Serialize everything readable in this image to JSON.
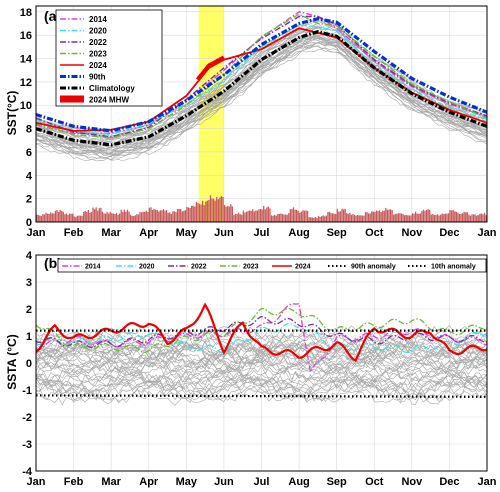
{
  "chart_data": [
    {
      "type": "line",
      "panel_label": "(a)",
      "ylabel": "SST(°C)",
      "xlabel": "",
      "x_ticks": [
        "Jan",
        "Feb",
        "Mar",
        "Apr",
        "May",
        "Jun",
        "Jul",
        "Aug",
        "Sep",
        "Oct",
        "Nov",
        "Dec",
        "Jan"
      ],
      "y_ticks": [
        0,
        2,
        4,
        6,
        8,
        10,
        12,
        14,
        16,
        18
      ],
      "ylim": [
        0,
        18.5
      ],
      "xlim": [
        0,
        12
      ],
      "grid": true,
      "legend_position": "top-left",
      "highlight": {
        "x_start": 4.33,
        "x_end": 5.0,
        "color": "#ffff66"
      },
      "series": [
        {
          "name": "2014",
          "color": "#e040e0",
          "style": "dashdot",
          "x": [
            0,
            1,
            2,
            3,
            4,
            5,
            6,
            7,
            7.5,
            8,
            9,
            10,
            11,
            12
          ],
          "y": [
            8.3,
            7.6,
            7.6,
            8.3,
            10.3,
            13.0,
            15.8,
            18.0,
            17.6,
            16.6,
            13.8,
            11.6,
            10.1,
            9.0
          ]
        },
        {
          "name": "2020",
          "color": "#40e0e0",
          "style": "dashdot",
          "x": [
            0,
            1,
            2,
            3,
            4,
            5,
            6,
            7,
            8,
            9,
            10,
            11,
            12
          ],
          "y": [
            8.8,
            7.8,
            7.5,
            8.4,
            10.1,
            12.1,
            15.0,
            16.9,
            16.4,
            13.4,
            11.3,
            9.8,
            8.8
          ]
        },
        {
          "name": "2022",
          "color": "#7b2fa0",
          "style": "dashdot",
          "x": [
            0,
            1,
            2,
            3,
            4,
            5,
            6,
            7,
            7.5,
            8,
            9,
            10,
            11,
            12
          ],
          "y": [
            8.9,
            7.7,
            7.3,
            8.1,
            10.5,
            13.2,
            15.7,
            17.6,
            17.6,
            16.9,
            13.9,
            11.7,
            10.2,
            9.1
          ]
        },
        {
          "name": "2023",
          "color": "#66bb33",
          "style": "dashdot",
          "x": [
            0,
            1,
            2,
            3,
            4,
            5,
            6,
            7,
            7.5,
            8,
            9,
            10,
            11,
            12
          ],
          "y": [
            8.4,
            7.5,
            7.2,
            8.0,
            10.0,
            12.6,
            15.9,
            17.8,
            17.0,
            16.8,
            14.2,
            11.8,
            10.3,
            8.9
          ]
        },
        {
          "name": "2024",
          "color": "#ee0000",
          "style": "solid",
          "x": [
            0,
            1,
            2,
            3,
            4,
            4.6,
            5,
            6,
            7,
            8,
            9,
            10,
            11,
            12
          ],
          "y": [
            8.5,
            7.8,
            7.9,
            8.6,
            10.8,
            13.2,
            13.9,
            14.8,
            16.6,
            15.8,
            13.2,
            11.1,
            9.6,
            8.5
          ]
        },
        {
          "name": "90th",
          "color": "#0033cc",
          "style": "dashdot",
          "x": [
            0,
            1,
            2,
            3,
            4,
            5,
            6,
            7,
            7.5,
            8,
            9,
            10,
            11,
            12
          ],
          "y": [
            9.2,
            8.2,
            7.8,
            8.6,
            10.4,
            12.6,
            15.2,
            17.0,
            17.4,
            17.1,
            14.6,
            12.3,
            10.7,
            9.4
          ]
        },
        {
          "name": "Climatology",
          "color": "#000000",
          "style": "dashdot",
          "x": [
            0,
            1,
            2,
            3,
            4,
            5,
            6,
            7,
            7.5,
            8,
            9,
            10,
            11,
            12
          ],
          "y": [
            8.0,
            7.0,
            6.6,
            7.3,
            9.1,
            11.2,
            13.9,
            15.8,
            16.3,
            15.9,
            13.2,
            11.0,
            9.4,
            8.2
          ]
        }
      ],
      "mhw_bars": {
        "name": "2024 MHW",
        "color": "#c85a5a",
        "x": [
          0,
          0.25,
          0.5,
          0.75,
          1,
          1.25,
          1.5,
          1.75,
          2,
          2.25,
          2.5,
          2.75,
          3,
          3.25,
          3.5,
          3.75,
          4,
          4.25,
          4.5,
          4.75,
          5,
          5.25,
          5.5,
          5.75,
          6,
          6.25,
          6.5,
          6.75,
          7,
          7.25,
          7.5,
          7.75,
          8,
          8.25,
          8.5,
          8.75,
          9,
          9.25,
          9.5,
          9.75,
          10,
          10.25,
          10.5,
          10.75,
          11,
          11.25,
          11.5,
          11.75
        ],
        "y": [
          0.6,
          0.8,
          0.9,
          0.7,
          0.5,
          0.9,
          1.1,
          0.8,
          0.7,
          1.0,
          0.6,
          0.9,
          1.2,
          1.0,
          0.8,
          1.0,
          1.3,
          1.6,
          2.0,
          2.1,
          1.5,
          0.7,
          0.9,
          1.0,
          1.2,
          0.6,
          0.7,
          1.1,
          0.9,
          0.4,
          0.5,
          0.8,
          1.0,
          0.7,
          0.6,
          0.8,
          0.9,
          1.1,
          0.7,
          0.6,
          0.8,
          1.0,
          0.6,
          0.7,
          0.9,
          0.8,
          0.6,
          0.7
        ]
      },
      "legend": [
        "2014",
        "2020",
        "2022",
        "2023",
        "2024",
        "90th",
        "Climatology",
        "2024 MHW"
      ]
    },
    {
      "type": "line",
      "panel_label": "(b)",
      "ylabel": "SSTA (°C)",
      "xlabel": "",
      "x_ticks": [
        "Jan",
        "Feb",
        "Mar",
        "Apr",
        "May",
        "Jun",
        "Jul",
        "Aug",
        "Sep",
        "Oct",
        "Nov",
        "Dec",
        "Jan"
      ],
      "y_ticks": [
        -4,
        -3,
        -2,
        -1,
        0,
        1,
        2,
        3,
        4
      ],
      "ylim": [
        -4,
        4
      ],
      "xlim": [
        0,
        12
      ],
      "grid": true,
      "legend_position": "top",
      "series": [
        {
          "name": "2014",
          "color": "#e040e0",
          "style": "dashdot",
          "x": [
            0,
            1,
            2,
            3,
            4,
            5,
            6,
            6.5,
            7,
            7.3,
            8,
            9,
            10,
            11,
            12
          ],
          "y": [
            0.6,
            0.9,
            0.7,
            0.8,
            1.0,
            1.1,
            1.3,
            1.8,
            2.3,
            -0.4,
            0.9,
            1.0,
            1.2,
            0.9,
            0.8
          ]
        },
        {
          "name": "2020",
          "color": "#40e0e0",
          "style": "dashdot",
          "x": [
            0,
            1,
            2,
            3,
            4,
            5,
            6,
            7,
            8,
            9,
            10,
            11,
            12
          ],
          "y": [
            0.8,
            0.8,
            0.9,
            1.1,
            0.6,
            0.5,
            1.2,
            1.4,
            0.6,
            0.6,
            0.5,
            0.7,
            1.2
          ]
        },
        {
          "name": "2022",
          "color": "#7b2fa0",
          "style": "dashdot",
          "x": [
            0,
            1,
            2,
            3,
            4,
            5,
            6,
            7,
            8,
            9,
            10,
            11,
            12
          ],
          "y": [
            0.9,
            0.7,
            0.7,
            0.9,
            1.1,
            1.3,
            1.6,
            1.5,
            1.0,
            0.8,
            1.0,
            0.9,
            0.9
          ]
        },
        {
          "name": "2023",
          "color": "#66bb33",
          "style": "dashdot",
          "x": [
            0,
            1,
            2,
            3,
            4,
            5,
            6,
            7,
            8,
            9,
            10,
            11,
            12
          ],
          "y": [
            1.5,
            0.6,
            0.6,
            0.5,
            0.9,
            1.1,
            1.9,
            1.9,
            1.2,
            1.4,
            1.6,
            1.1,
            1.4
          ]
        },
        {
          "name": "2024",
          "color": "#ee0000",
          "style": "solid",
          "x": [
            0,
            0.5,
            1,
            2,
            3,
            3.5,
            4,
            4.5,
            5,
            5.5,
            6,
            7,
            8,
            8.5,
            9,
            10,
            10.5,
            11,
            12
          ],
          "y": [
            0.5,
            1.3,
            0.9,
            1.2,
            1.5,
            0.8,
            1.2,
            2.1,
            0.5,
            1.5,
            0.5,
            0.3,
            0.7,
            0.2,
            1.3,
            1.0,
            1.2,
            0.4,
            0.6
          ]
        },
        {
          "name": "90th anomaly",
          "color": "#000000",
          "style": "dotted",
          "x": [
            0,
            12
          ],
          "y": [
            1.2,
            1.2
          ]
        },
        {
          "name": "10th anomaly",
          "color": "#000000",
          "style": "dotted",
          "x": [
            0,
            12
          ],
          "y": [
            -1.2,
            -1.25
          ]
        }
      ],
      "legend": [
        "2014",
        "2020",
        "2022",
        "2023",
        "2024",
        "90th anomaly",
        "10th anomaly"
      ]
    }
  ]
}
